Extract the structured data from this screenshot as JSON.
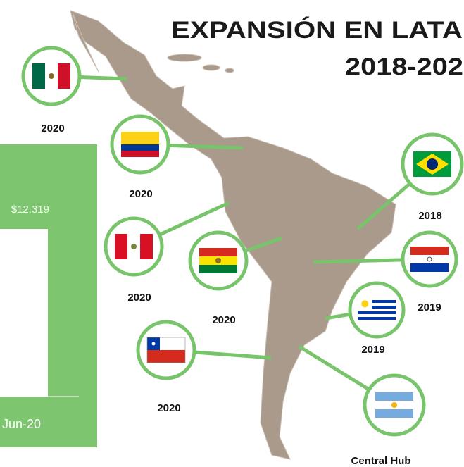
{
  "title": {
    "line1": "EXPANSIÓN EN LATA",
    "line2": "2018-202"
  },
  "panel": {
    "value": "$12.319",
    "date": "Jun-20"
  },
  "markers": [
    {
      "label": "2020"
    },
    {
      "label": "2020"
    },
    {
      "label": "2020"
    },
    {
      "label": "2020"
    },
    {
      "label": "2020"
    },
    {
      "label": "2018"
    },
    {
      "label": "2019"
    },
    {
      "label": "2019"
    },
    {
      "label": "Central Hub"
    }
  ]
}
